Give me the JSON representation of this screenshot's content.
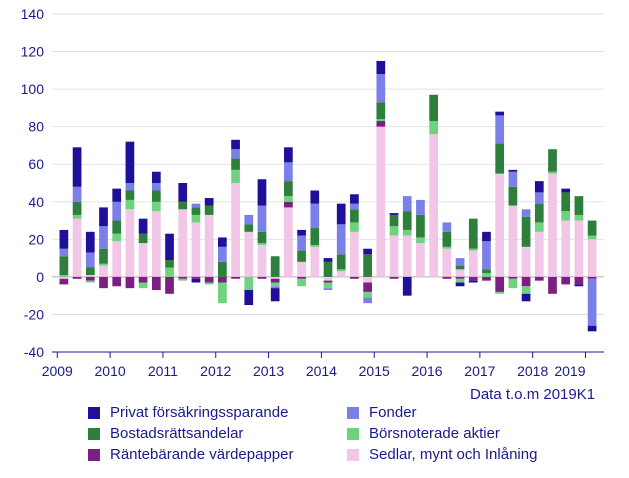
{
  "chart_data": {
    "type": "bar",
    "stacked": true,
    "ylim": [
      -40,
      140
    ],
    "yticks": [
      -40,
      -20,
      0,
      20,
      40,
      60,
      80,
      100,
      120,
      140
    ],
    "xticks": [
      "2009",
      "2010",
      "2011",
      "2012",
      "2013",
      "2014",
      "2015",
      "2016",
      "2017",
      "2018",
      "2019"
    ],
    "note": "Data t.o.m 2019K1",
    "series": [
      {
        "name": "Sedlar, mynt och Inlåning",
        "color": "#f2c6e6",
        "values": [
          -1,
          31,
          1,
          6,
          19,
          36,
          18,
          35,
          0,
          36,
          29,
          33,
          0,
          50,
          24,
          17,
          -1,
          37,
          8,
          16,
          -2,
          3,
          24,
          -3,
          80,
          22,
          22,
          18,
          76,
          15,
          4,
          14,
          0,
          55,
          38,
          16,
          24,
          55,
          30,
          30,
          20
        ]
      },
      {
        "name": "Räntebärande värdepapper",
        "color": "#7b1f82",
        "values": [
          -3,
          -1,
          -2,
          -6,
          -5,
          -6,
          -3,
          -7,
          -9,
          -1,
          -1,
          -3,
          -3,
          -1,
          0,
          -1,
          -2,
          3,
          -1,
          0,
          -1,
          0,
          -1,
          -5,
          3,
          -1,
          0,
          0,
          0,
          -1,
          -1,
          -2,
          -2,
          -8,
          -1,
          -5,
          -2,
          -9,
          -4,
          -4,
          -1
        ]
      },
      {
        "name": "Börsnoterade aktier",
        "color": "#6fd37e",
        "values": [
          1,
          2,
          -1,
          1,
          4,
          5,
          -3,
          5,
          5,
          -1,
          4,
          -1,
          -11,
          7,
          -7,
          1,
          -2,
          3,
          -4,
          1,
          -3,
          1,
          5,
          -3,
          1,
          5,
          3,
          3,
          7,
          1,
          -2,
          1,
          2,
          -1,
          -5,
          -4,
          5,
          1,
          5,
          3,
          2
        ]
      },
      {
        "name": "Bostadsrättsandelar",
        "color": "#2f7f3c",
        "values": [
          10,
          7,
          4,
          8,
          7,
          5,
          5,
          6,
          4,
          4,
          4,
          5,
          8,
          6,
          4,
          6,
          11,
          8,
          6,
          9,
          8,
          8,
          7,
          12,
          9,
          6,
          10,
          12,
          14,
          8,
          2,
          16,
          2,
          16,
          10,
          16,
          10,
          12,
          10,
          10,
          8
        ]
      },
      {
        "name": "Fonder",
        "color": "#7b7fe8",
        "values": [
          4,
          8,
          8,
          12,
          10,
          4,
          0,
          4,
          0,
          0,
          2,
          0,
          8,
          5,
          5,
          14,
          -1,
          10,
          8,
          13,
          -1,
          16,
          3,
          -3,
          15,
          0,
          8,
          8,
          0,
          5,
          4,
          0,
          15,
          15,
          8,
          4,
          6,
          0,
          0,
          0,
          -25
        ]
      },
      {
        "name": "Privat försäkringssparande",
        "color": "#1f0f99",
        "values": [
          10,
          21,
          11,
          10,
          7,
          22,
          8,
          6,
          14,
          10,
          -2,
          4,
          5,
          5,
          -8,
          14,
          -7,
          8,
          3,
          7,
          2,
          11,
          5,
          3,
          7,
          1,
          -10,
          0,
          0,
          0,
          -2,
          -1,
          5,
          2,
          1,
          -4,
          6,
          0,
          2,
          -1,
          -3
        ]
      }
    ],
    "legend": {
      "left": [
        {
          "label": "Privat försäkringssparande",
          "color": "#1f0f99"
        },
        {
          "label": "Bostadsrättsandelar",
          "color": "#2f7f3c"
        },
        {
          "label": "Räntebärande värdepapper",
          "color": "#7b1f82"
        }
      ],
      "right": [
        {
          "label": "Fonder",
          "color": "#7b7fe8"
        },
        {
          "label": "Börsnoterade aktier",
          "color": "#6fd37e"
        },
        {
          "label": "Sedlar, mynt och Inlåning",
          "color": "#f2c6e6"
        }
      ]
    }
  }
}
